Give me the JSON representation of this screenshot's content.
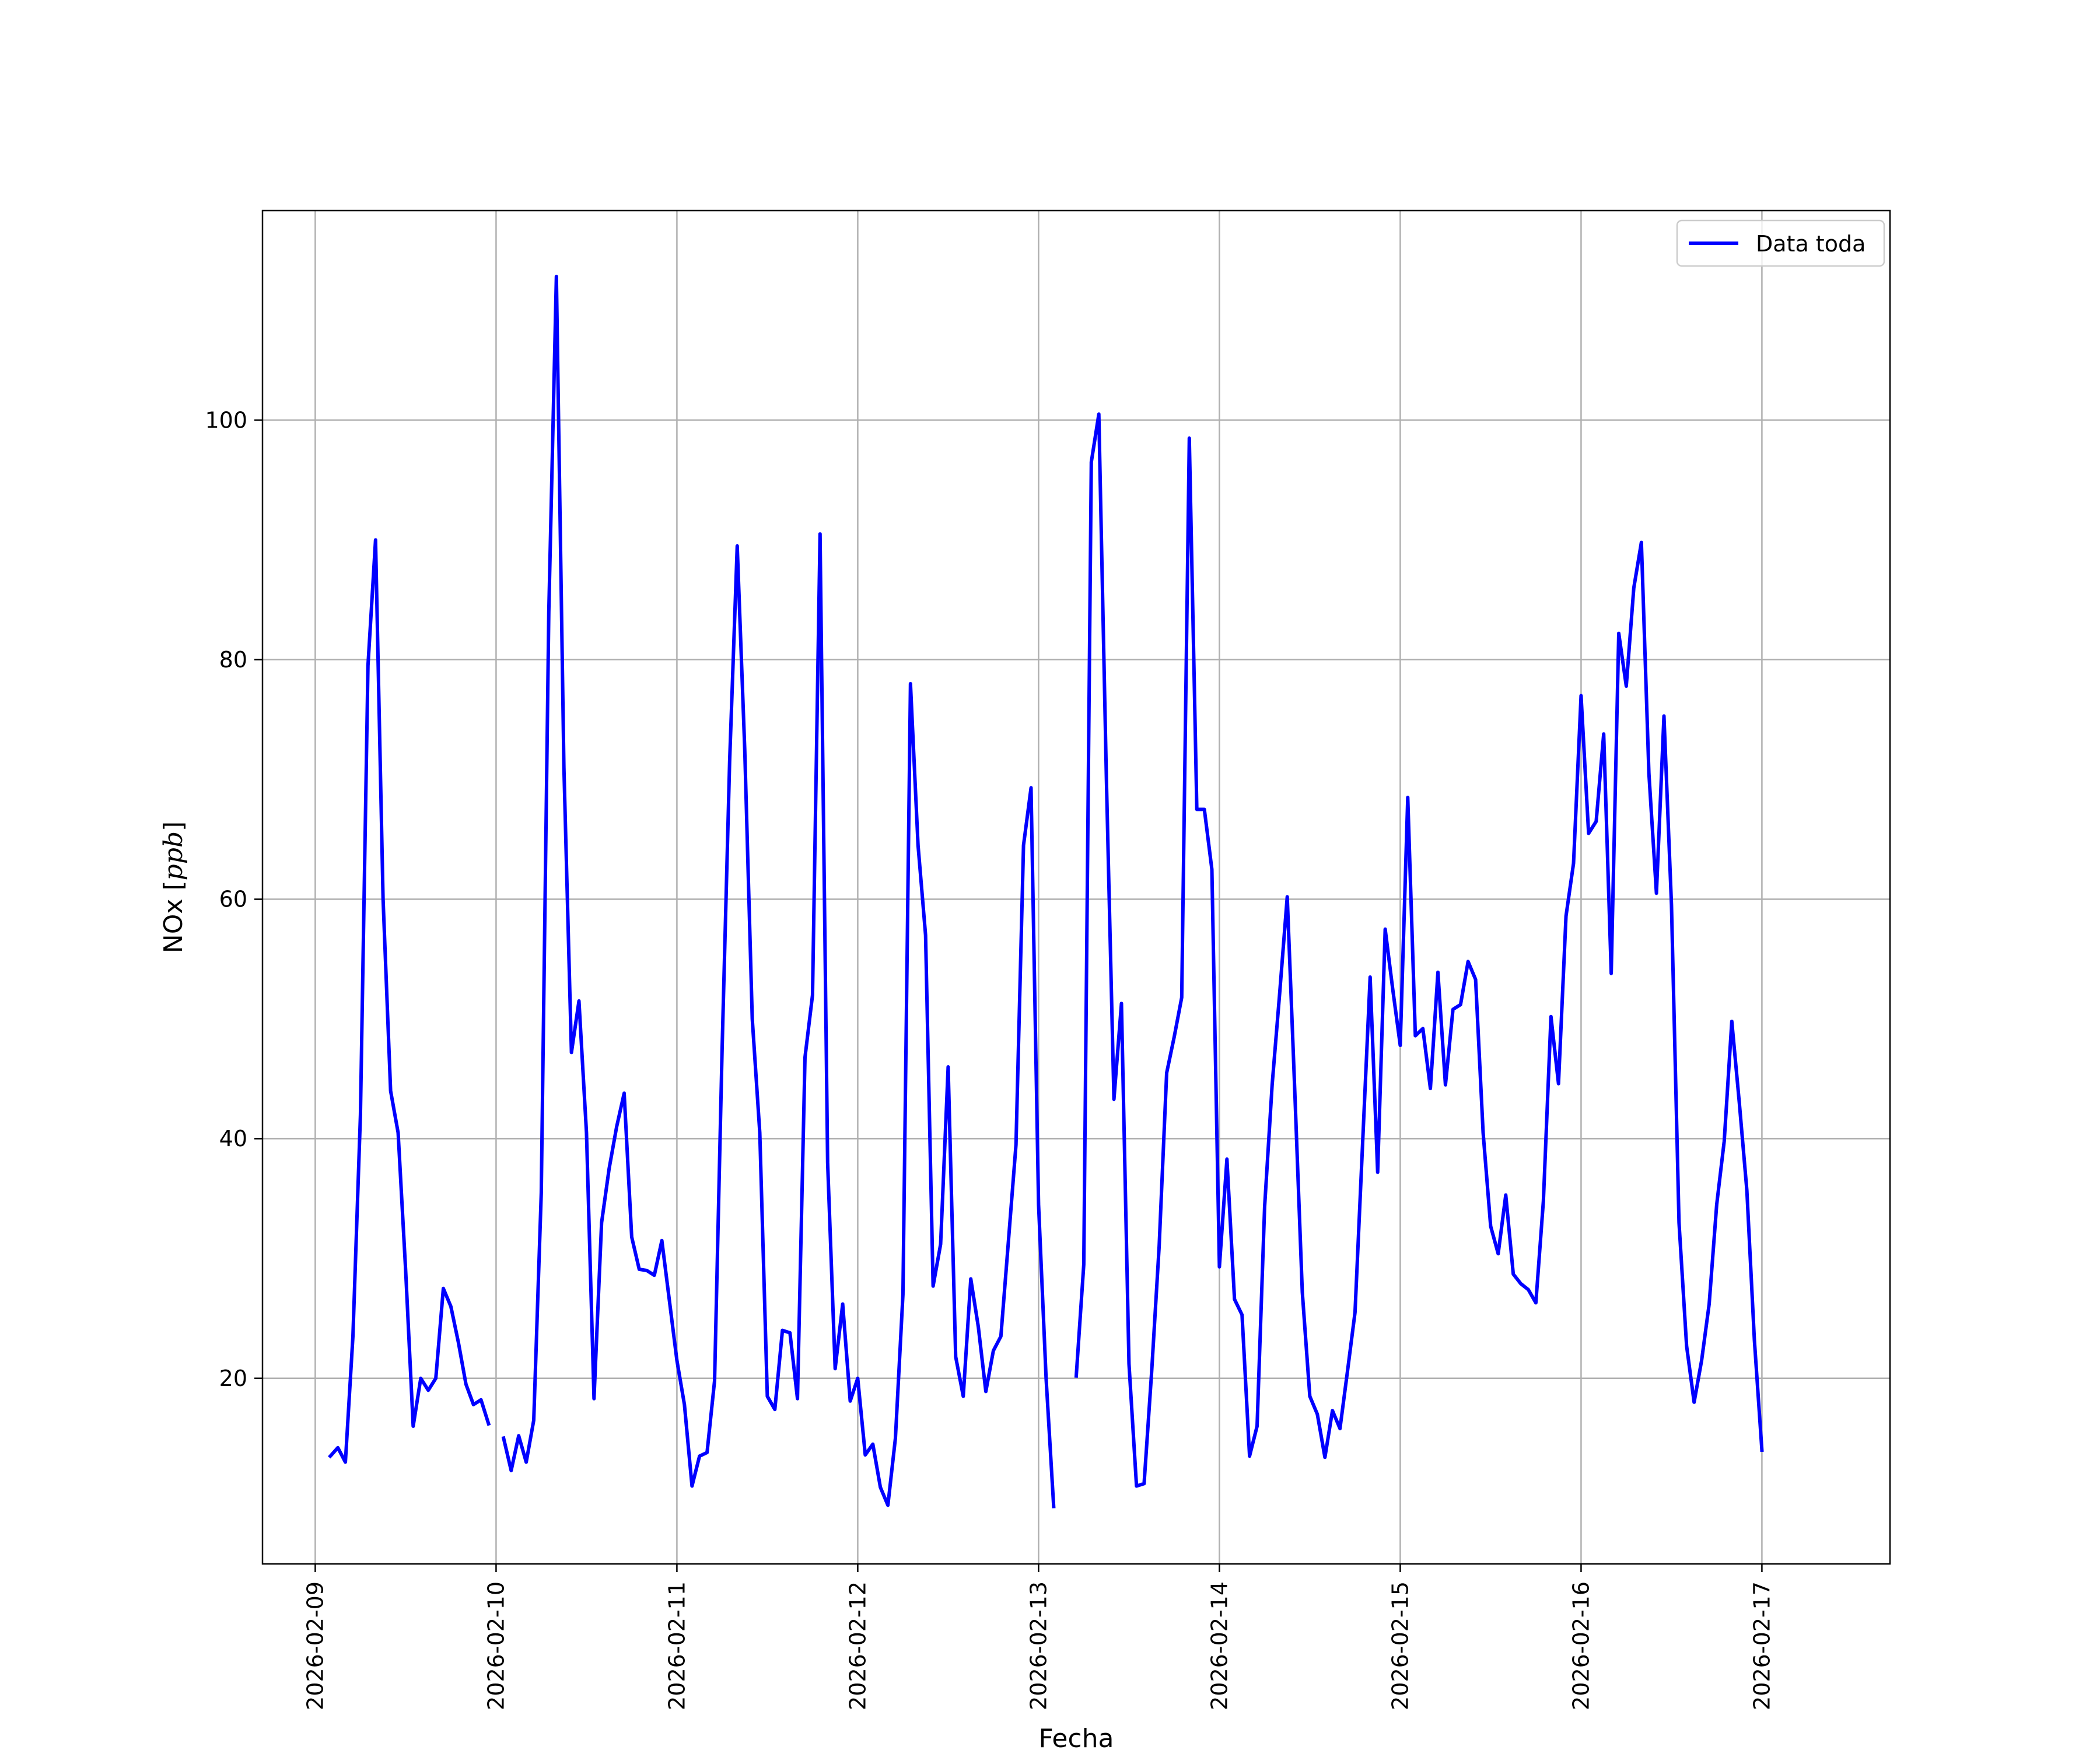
{
  "chart_data": {
    "type": "line",
    "xlabel": "Fecha",
    "ylabel_main": "NOx",
    "ylabel_unit": "ppb",
    "x_ticks": [
      "2026-02-09",
      "2026-02-10",
      "2026-02-11",
      "2026-02-12",
      "2026-02-13",
      "2026-02-14",
      "2026-02-15",
      "2026-02-16",
      "2026-02-17"
    ],
    "y_ticks": [
      20,
      40,
      60,
      80,
      100
    ],
    "xlim": [
      "2026-02-08T17:00",
      "2026-02-17T17:00"
    ],
    "ylim": [
      4.5,
      117.5
    ],
    "grid": true,
    "legend_position": "upper right",
    "colors": {
      "series": "#0000ff",
      "grid": "#b0b0b0",
      "axes": "#000000"
    },
    "series": [
      {
        "name": "Data toda",
        "step_hours": 1,
        "start": "2026-02-09T02:00",
        "values": [
          13.5,
          14.2,
          13.0,
          23.5,
          42.0,
          79.5,
          90.0,
          60.0,
          44.0,
          40.5,
          29.0,
          16.0,
          20.0,
          19.0,
          20.0,
          27.5,
          26.0,
          23.0,
          19.5,
          17.8,
          18.2,
          16.2,
          null,
          15.0,
          12.3,
          15.2,
          13.0,
          16.5,
          35.5,
          84.0,
          112.0,
          71.0,
          47.2,
          51.5,
          40.5,
          18.3,
          33.0,
          37.5,
          41.0,
          43.8,
          31.8,
          29.1,
          29.0,
          28.6,
          31.5,
          26.5,
          21.5,
          17.8,
          11.0,
          13.5,
          13.8,
          19.8,
          47.5,
          71.5,
          89.5,
          72.5,
          50.0,
          40.5,
          18.5,
          17.4,
          24.0,
          23.8,
          18.3,
          46.8,
          52.0,
          90.5,
          38.0,
          20.8,
          26.2,
          18.1,
          20.0,
          13.6,
          14.5,
          10.9,
          9.4,
          15.0,
          27.0,
          78.0,
          64.5,
          57.0,
          27.7,
          31.2,
          46.0,
          21.8,
          18.5,
          28.3,
          24.3,
          18.9,
          22.3,
          23.5,
          31.5,
          39.5,
          64.5,
          69.3,
          34.5,
          20.0,
          9.3,
          null,
          null,
          20.2,
          29.5,
          96.5,
          100.5,
          70.0,
          43.3,
          51.3,
          21.2,
          11.0,
          11.2,
          20.5,
          31.0,
          45.5,
          48.5,
          51.8,
          98.5,
          67.5,
          67.5,
          62.5,
          29.3,
          38.3,
          26.6,
          25.3,
          13.5,
          16.0,
          34.3,
          44.5,
          52.2,
          60.2,
          44.0,
          27.2,
          18.5,
          17.0,
          13.4,
          17.3,
          15.8,
          20.6,
          25.5,
          39.5,
          53.5,
          37.2,
          57.5,
          52.5,
          47.8,
          68.5,
          48.6,
          49.2,
          44.2,
          53.9,
          44.5,
          50.8,
          51.2,
          54.8,
          53.3,
          40.5,
          32.7,
          30.4,
          35.3,
          28.7,
          27.9,
          27.4,
          26.3,
          34.8,
          50.2,
          44.6,
          58.6,
          63.0,
          77.0,
          65.5,
          66.5,
          73.8,
          53.8,
          82.2,
          77.8,
          86.0,
          89.8,
          70.5,
          60.5,
          75.3,
          59.5,
          33.0,
          22.7,
          18.0,
          21.5,
          26.2,
          34.5,
          39.8,
          49.8,
          43.0,
          35.7,
          23.2,
          14.0
        ]
      }
    ]
  }
}
